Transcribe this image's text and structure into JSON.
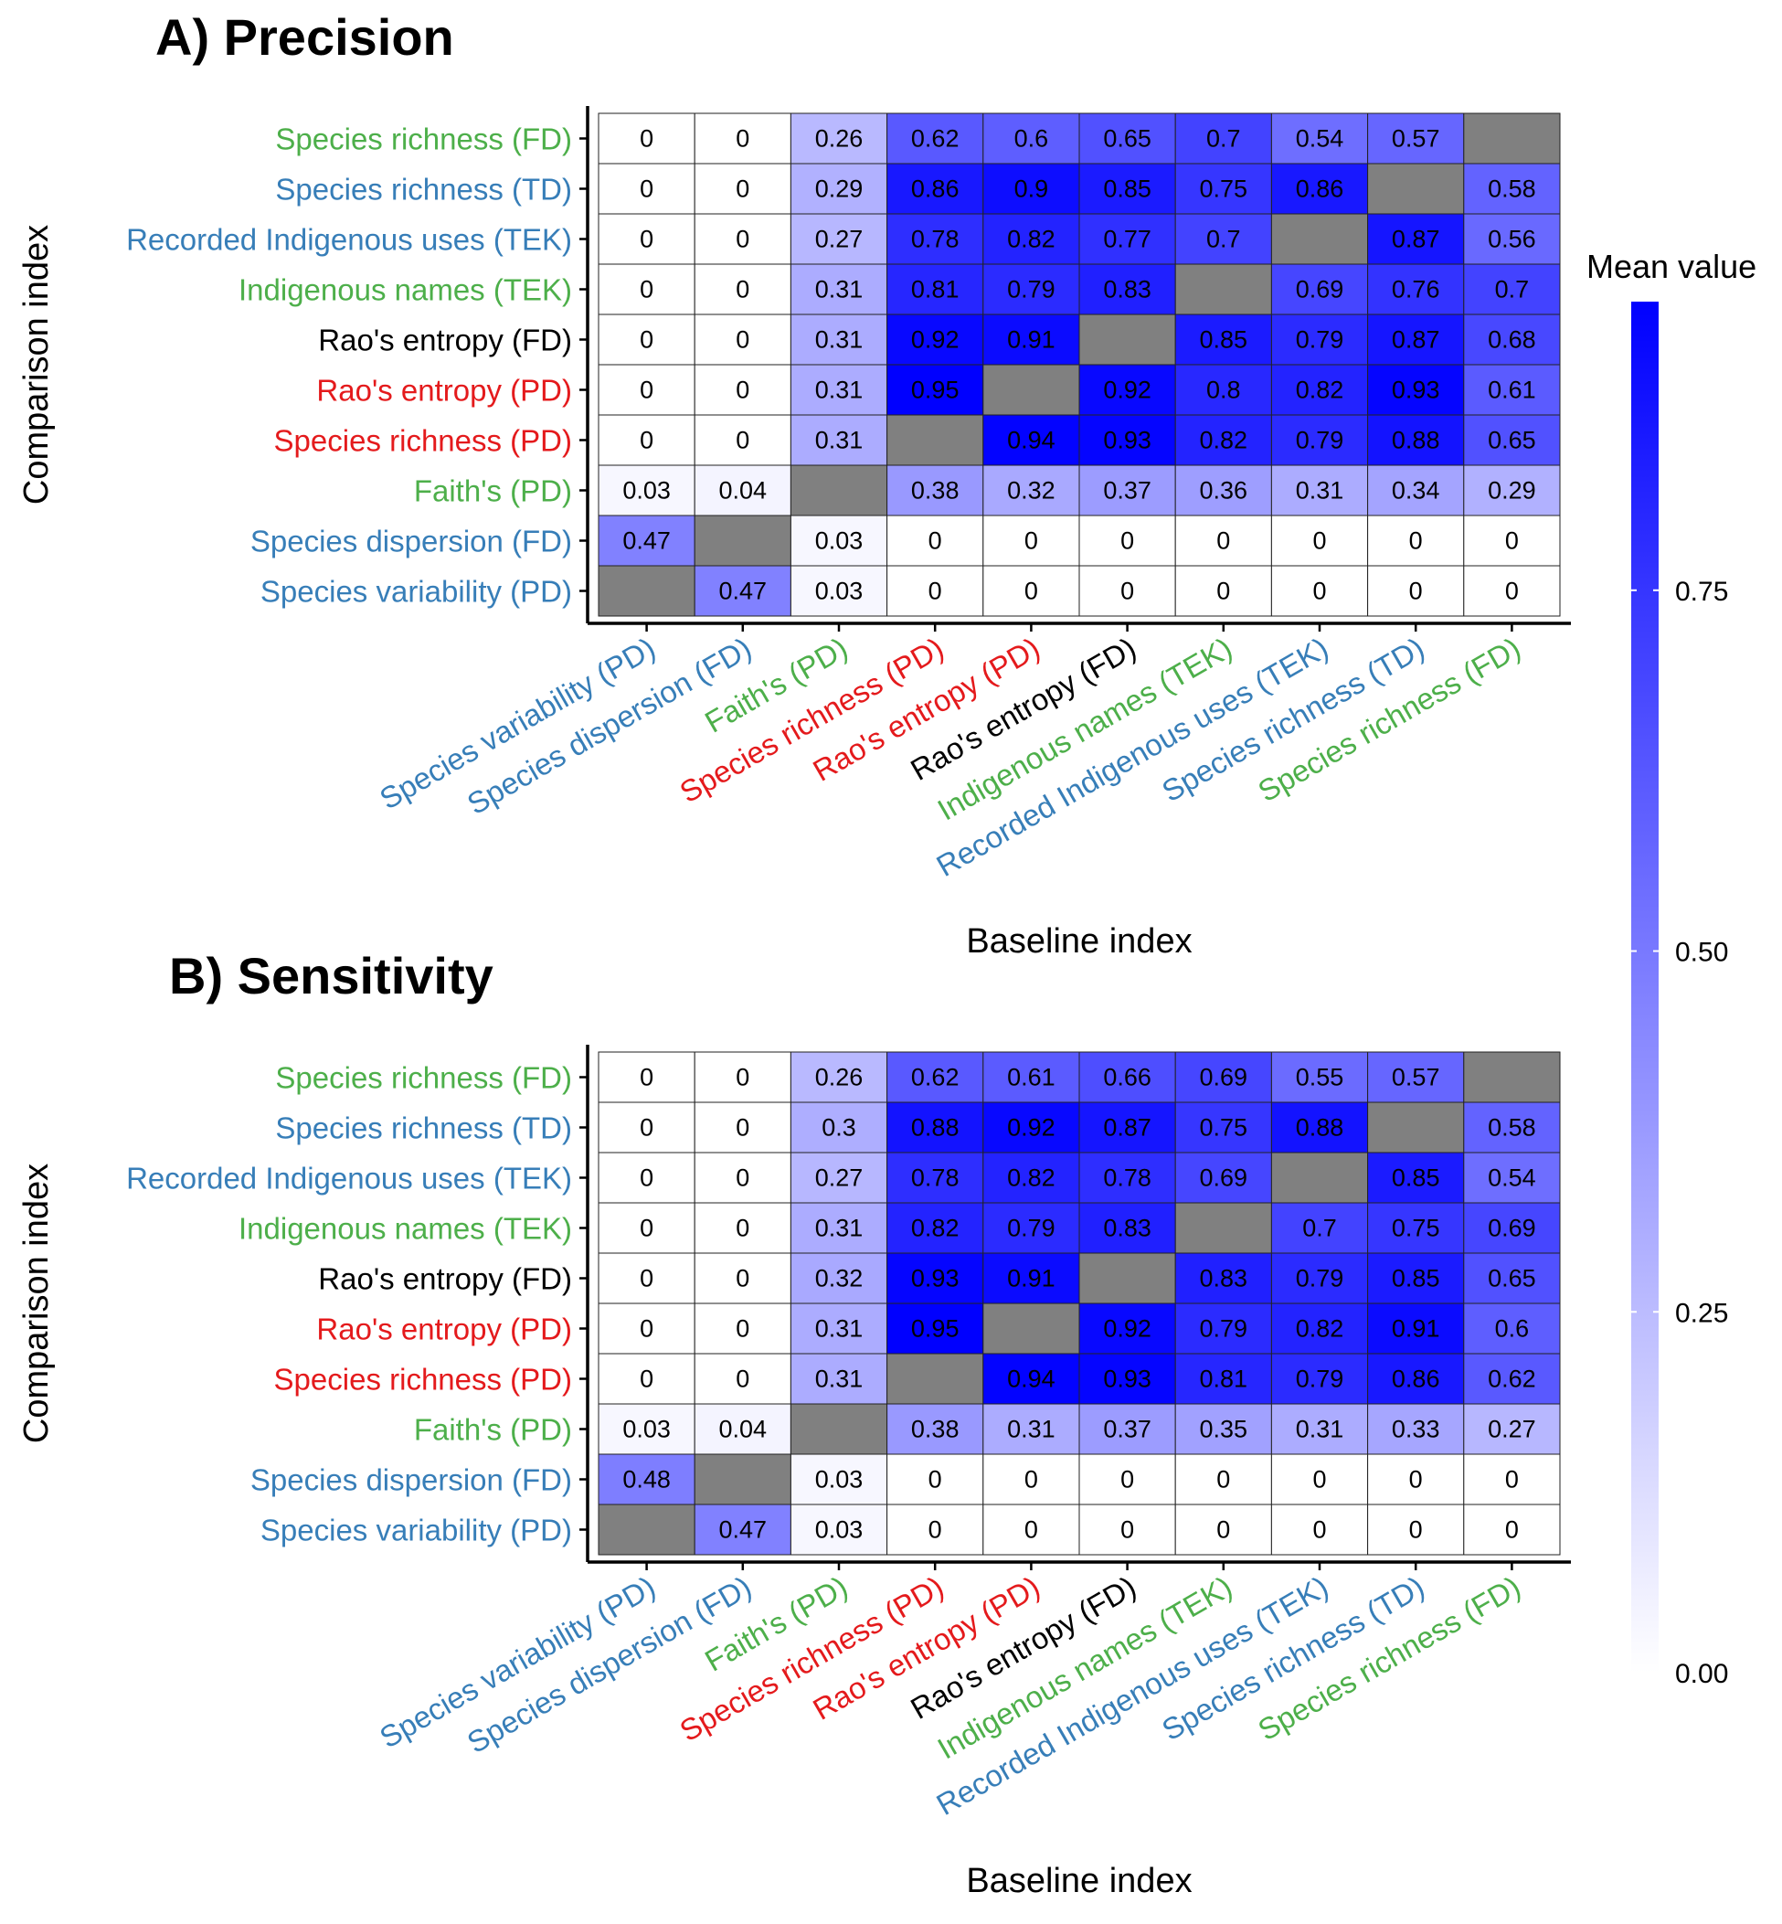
{
  "colors": {
    "PD_red": "#e41a1c",
    "FD_blue": "#377eb8",
    "TD_blue": "#377eb8",
    "TEK_green": "#4daf4a",
    "FD_black": "#000000",
    "missing": "#808080",
    "scale_low": "#ffffff",
    "scale_high": "#0000ff"
  },
  "legend": {
    "title": "Mean value",
    "ticks": [
      "0.00",
      "0.25",
      "0.50",
      "0.75"
    ],
    "tick_values": [
      0,
      0.25,
      0.5,
      0.75
    ],
    "range": [
      0,
      0.95
    ]
  },
  "chart_data": [
    {
      "type": "heatmap",
      "title": "A) Precision",
      "xlabel": "Baseline index",
      "ylabel": "Comparison index",
      "x": [
        "Species variability (PD)",
        "Species dispersion (FD)",
        "Faith's (PD)",
        "Species richness (PD)",
        "Rao's entropy (PD)",
        "Rao's entropy (FD)",
        "Indigenous names (TEK)",
        "Recorded Indigenous uses (TEK)",
        "Species richness (TD)",
        "Species richness (FD)"
      ],
      "x_colors": [
        "#377eb8",
        "#377eb8",
        "#4daf4a",
        "#e41a1c",
        "#e41a1c",
        "#000000",
        "#4daf4a",
        "#377eb8",
        "#377eb8",
        "#4daf4a"
      ],
      "y": [
        "Species richness (FD)",
        "Species richness (TD)",
        "Recorded Indigenous uses (TEK)",
        "Indigenous names (TEK)",
        "Rao's entropy (FD)",
        "Rao's entropy (PD)",
        "Species richness (PD)",
        "Faith's (PD)",
        "Species dispersion (FD)",
        "Species variability (PD)"
      ],
      "y_colors": [
        "#4daf4a",
        "#377eb8",
        "#377eb8",
        "#4daf4a",
        "#000000",
        "#e41a1c",
        "#e41a1c",
        "#4daf4a",
        "#377eb8",
        "#377eb8"
      ],
      "values": [
        [
          "0",
          "0",
          "0.26",
          "0.62",
          "0.6",
          "0.65",
          "0.7",
          "0.54",
          "0.57",
          null
        ],
        [
          "0",
          "0",
          "0.29",
          "0.86",
          "0.9",
          "0.85",
          "0.75",
          "0.86",
          null,
          "0.58"
        ],
        [
          "0",
          "0",
          "0.27",
          "0.78",
          "0.82",
          "0.77",
          "0.7",
          null,
          "0.87",
          "0.56"
        ],
        [
          "0",
          "0",
          "0.31",
          "0.81",
          "0.79",
          "0.83",
          null,
          "0.69",
          "0.76",
          "0.7"
        ],
        [
          "0",
          "0",
          "0.31",
          "0.92",
          "0.91",
          null,
          "0.85",
          "0.79",
          "0.87",
          "0.68"
        ],
        [
          "0",
          "0",
          "0.31",
          "0.95",
          null,
          "0.92",
          "0.8",
          "0.82",
          "0.93",
          "0.61"
        ],
        [
          "0",
          "0",
          "0.31",
          null,
          "0.94",
          "0.93",
          "0.82",
          "0.79",
          "0.88",
          "0.65"
        ],
        [
          "0.03",
          "0.04",
          null,
          "0.38",
          "0.32",
          "0.37",
          "0.36",
          "0.31",
          "0.34",
          "0.29"
        ],
        [
          "0.47",
          null,
          "0.03",
          "0",
          "0",
          "0",
          "0",
          "0",
          "0",
          "0"
        ],
        [
          null,
          "0.47",
          "0.03",
          "0",
          "0",
          "0",
          "0",
          "0",
          "0",
          "0"
        ]
      ]
    },
    {
      "type": "heatmap",
      "title": "B) Sensitivity",
      "xlabel": "Baseline index",
      "ylabel": "Comparison index",
      "x": [
        "Species variability (PD)",
        "Species dispersion (FD)",
        "Faith's (PD)",
        "Species richness (PD)",
        "Rao's entropy (PD)",
        "Rao's entropy (FD)",
        "Indigenous names (TEK)",
        "Recorded Indigenous uses (TEK)",
        "Species richness (TD)",
        "Species richness (FD)"
      ],
      "x_colors": [
        "#377eb8",
        "#377eb8",
        "#4daf4a",
        "#e41a1c",
        "#e41a1c",
        "#000000",
        "#4daf4a",
        "#377eb8",
        "#377eb8",
        "#4daf4a"
      ],
      "y": [
        "Species richness (FD)",
        "Species richness (TD)",
        "Recorded Indigenous uses (TEK)",
        "Indigenous names (TEK)",
        "Rao's entropy (FD)",
        "Rao's entropy (PD)",
        "Species richness (PD)",
        "Faith's (PD)",
        "Species dispersion (FD)",
        "Species variability (PD)"
      ],
      "y_colors": [
        "#4daf4a",
        "#377eb8",
        "#377eb8",
        "#4daf4a",
        "#000000",
        "#e41a1c",
        "#e41a1c",
        "#4daf4a",
        "#377eb8",
        "#377eb8"
      ],
      "values": [
        [
          "0",
          "0",
          "0.26",
          "0.62",
          "0.61",
          "0.66",
          "0.69",
          "0.55",
          "0.57",
          null
        ],
        [
          "0",
          "0",
          "0.3",
          "0.88",
          "0.92",
          "0.87",
          "0.75",
          "0.88",
          null,
          "0.58"
        ],
        [
          "0",
          "0",
          "0.27",
          "0.78",
          "0.82",
          "0.78",
          "0.69",
          null,
          "0.85",
          "0.54"
        ],
        [
          "0",
          "0",
          "0.31",
          "0.82",
          "0.79",
          "0.83",
          null,
          "0.7",
          "0.75",
          "0.69"
        ],
        [
          "0",
          "0",
          "0.32",
          "0.93",
          "0.91",
          null,
          "0.83",
          "0.79",
          "0.85",
          "0.65"
        ],
        [
          "0",
          "0",
          "0.31",
          "0.95",
          null,
          "0.92",
          "0.79",
          "0.82",
          "0.91",
          "0.6"
        ],
        [
          "0",
          "0",
          "0.31",
          null,
          "0.94",
          "0.93",
          "0.81",
          "0.79",
          "0.86",
          "0.62"
        ],
        [
          "0.03",
          "0.04",
          null,
          "0.38",
          "0.31",
          "0.37",
          "0.35",
          "0.31",
          "0.33",
          "0.27"
        ],
        [
          "0.48",
          null,
          "0.03",
          "0",
          "0",
          "0",
          "0",
          "0",
          "0",
          "0"
        ],
        [
          null,
          "0.47",
          "0.03",
          "0",
          "0",
          "0",
          "0",
          "0",
          "0",
          "0"
        ]
      ]
    }
  ]
}
